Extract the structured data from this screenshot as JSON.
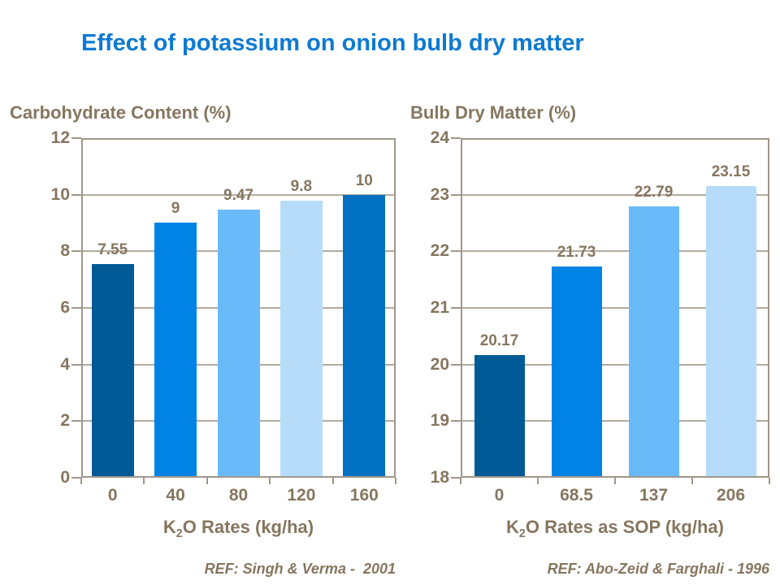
{
  "slide": {
    "title": "Effect of potassium on onion bulb dry matter"
  },
  "colors": {
    "background": "#ffffff",
    "title_blue": "#0d7ad2",
    "text_brown": "#86765f",
    "axis_line": "#a2968a",
    "gridline": "#b5ab9f"
  },
  "chart_data": [
    {
      "type": "bar",
      "title": "Carbohydrate Content (%)",
      "xlabel": "K2O Rates (kg/ha)",
      "xlabel_parts": {
        "pre": "K",
        "sub": "2",
        "post": "O Rates (kg/ha)"
      },
      "categories": [
        "0",
        "40",
        "80",
        "120",
        "160"
      ],
      "values": [
        7.55,
        9,
        9.47,
        9.8,
        10
      ],
      "value_labels": [
        "7.55",
        "9",
        "9.47",
        "9.8",
        "10"
      ],
      "ylim": [
        0,
        12
      ],
      "yticks": [
        12,
        10,
        8,
        6,
        4,
        2,
        0
      ],
      "bar_colors": [
        "#005a96",
        "#0083e4",
        "#68bbf8",
        "#b7dcfa",
        "#0071c0"
      ],
      "grid": true,
      "legend": "none",
      "ref": "REF: Singh & Verma -  2001"
    },
    {
      "type": "bar",
      "title": "Bulb Dry Matter (%)",
      "xlabel": "K2O Rates as SOP (kg/ha)",
      "xlabel_parts": {
        "pre": "K",
        "sub": "2",
        "post": "O Rates as SOP (kg/ha)"
      },
      "categories": [
        "0",
        "68.5",
        "137",
        "206"
      ],
      "values": [
        20.17,
        21.73,
        22.79,
        23.15
      ],
      "value_labels": [
        "20.17",
        "21.73",
        "22.79",
        "23.15"
      ],
      "ylim": [
        18,
        24
      ],
      "yticks": [
        24,
        23,
        22,
        21,
        20,
        19,
        18
      ],
      "bar_colors": [
        "#005a96",
        "#0083e4",
        "#68bbf8",
        "#b7dcfa"
      ],
      "grid": true,
      "legend": "none",
      "ref": "REF: Abo-Zeid & Farghali - 1996"
    }
  ]
}
